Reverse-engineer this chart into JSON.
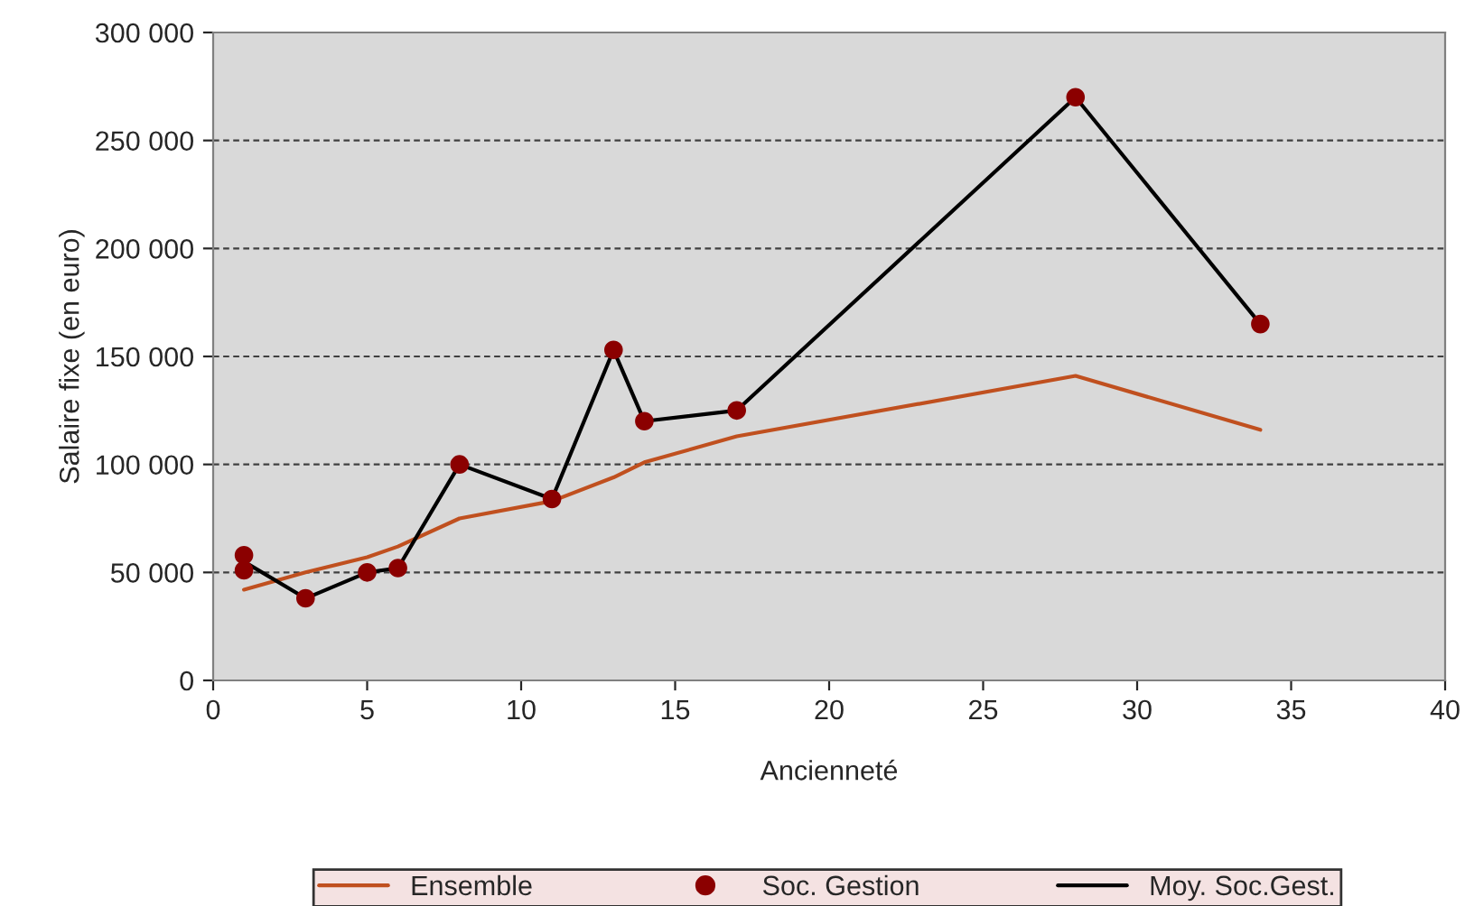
{
  "chart_data": {
    "type": "line",
    "xlabel": "Ancienneté",
    "ylabel": "Salaire fixe (en euro)",
    "xlim": [
      0,
      40
    ],
    "xticks": [
      0,
      5,
      10,
      15,
      20,
      25,
      30,
      35,
      40
    ],
    "ylim": [
      0,
      300000
    ],
    "yticks": [
      0,
      {
        "value": 50000,
        "label": "50 000"
      },
      {
        "value": 100000,
        "label": "100 000"
      },
      {
        "value": 150000,
        "label": "150 000"
      },
      {
        "value": 200000,
        "label": "200 000"
      },
      {
        "value": 250000,
        "label": "250 000"
      },
      {
        "value": 300000,
        "label": "300 000"
      }
    ],
    "grid": "y",
    "legend": "bottom",
    "series": [
      {
        "name": "Ensemble",
        "color": "#c0501f",
        "marker": "none",
        "x": [
          1,
          3,
          5,
          6,
          8,
          11,
          13,
          14,
          17,
          28,
          34
        ],
        "values": [
          42000,
          50000,
          57000,
          62000,
          75000,
          83000,
          94000,
          101000,
          113000,
          141000,
          116000
        ]
      },
      {
        "name": "Soc. Gestion",
        "type": "scatter",
        "color": "#8b0000",
        "marker": "circle",
        "x": [
          1,
          1,
          3,
          5,
          6,
          8,
          11,
          13,
          14,
          17,
          28,
          34
        ],
        "values": [
          58000,
          51000,
          38000,
          50000,
          52000,
          100000,
          84000,
          153000,
          120000,
          125000,
          270000,
          165000
        ]
      },
      {
        "name": "Moy. Soc.Gest.",
        "color": "#000000",
        "marker": "none",
        "x": [
          1,
          3,
          5,
          6,
          8,
          11,
          13,
          14,
          17,
          28,
          34
        ],
        "values": [
          55000,
          38000,
          50000,
          52000,
          100000,
          84000,
          153000,
          120000,
          125000,
          270000,
          165000
        ]
      }
    ]
  }
}
